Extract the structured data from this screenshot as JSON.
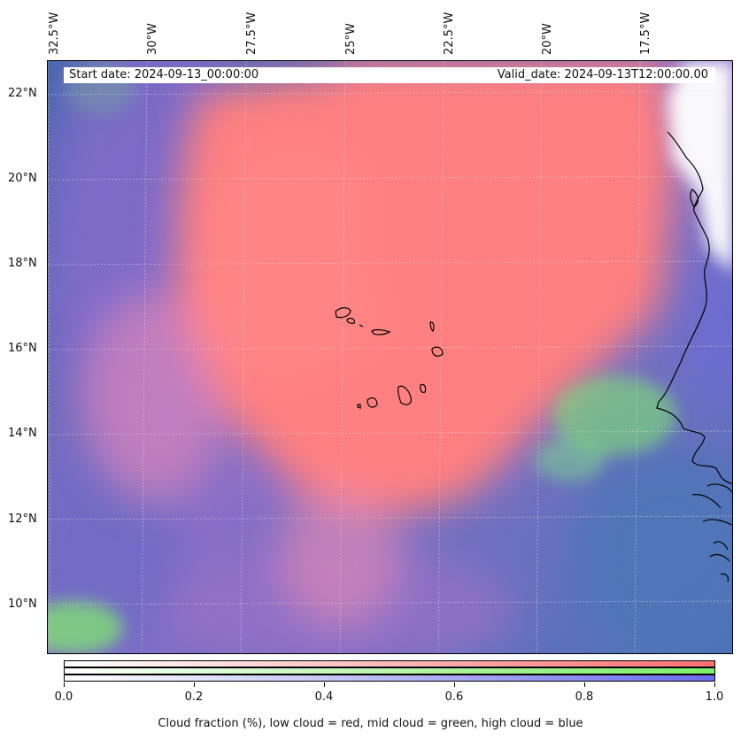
{
  "map": {
    "start_date_label": "Start date: 2024-09-13_00:00:00",
    "valid_date_label": "Valid_date: 2024-09-13T12:00:00.00",
    "longitude_labels": [
      "32.5°W",
      "30°W",
      "27.5°W",
      "25°W",
      "22.5°W",
      "20°W",
      "17.5°W"
    ],
    "latitude_labels": [
      "22°N",
      "20°N",
      "18°N",
      "16°N",
      "14°N",
      "12°N",
      "10°N"
    ],
    "gridlines": true,
    "coastline_color": "#000000",
    "layers": {
      "low_cloud_color": "#ff7f7f",
      "mid_cloud_color": "#80ef6a",
      "high_cloud_color": "#6a6ae0",
      "ocean_base_color": "#4f6ab0"
    }
  },
  "colorbar": {
    "tick_labels": [
      "0.0",
      "0.2",
      "0.4",
      "0.6",
      "0.8",
      "1.0"
    ],
    "caption": "Cloud fraction (%), low cloud = red, mid cloud = green, high cloud = blue",
    "bars": [
      {
        "name": "low",
        "color": "#ff7070"
      },
      {
        "name": "mid",
        "color": "#7cf06a"
      },
      {
        "name": "high",
        "color": "#6c6cf0"
      }
    ]
  }
}
